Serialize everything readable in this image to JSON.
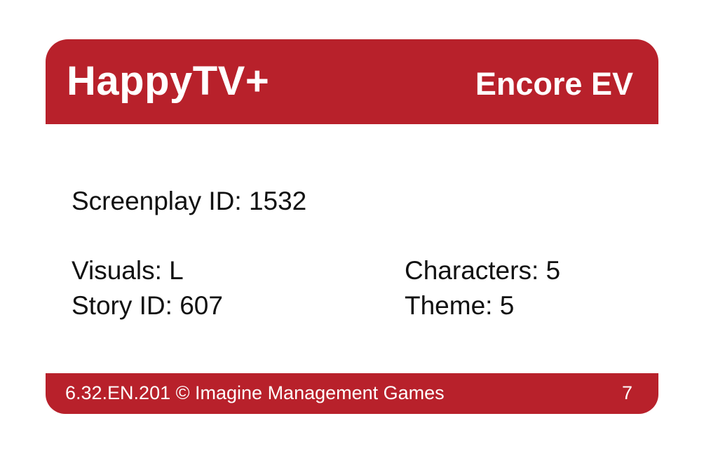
{
  "card": {
    "brand": "HappyTV+",
    "title": "Encore EV",
    "screenplay_id": "Screenplay ID: 1532",
    "visuals": "Visuals: L",
    "story_id": "Story ID: 607",
    "characters": "Characters: 5",
    "theme": "Theme: 5",
    "footer_text": "6.32.EN.201 © Imagine Management Games",
    "card_number": "7"
  },
  "colors": {
    "accent": "#b8212b"
  }
}
